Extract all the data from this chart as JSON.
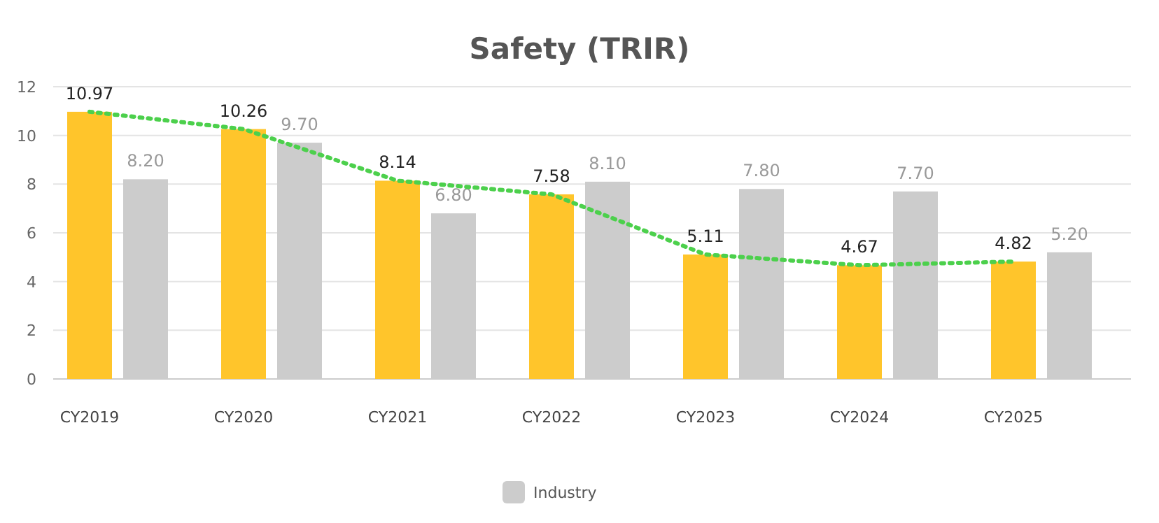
{
  "chart_data": {
    "type": "bar",
    "title": "Safety (TRIR)",
    "categories": [
      "CY2019",
      "CY2020",
      "CY2021",
      "CY2022",
      "CY2023",
      "CY2024",
      "CY2025"
    ],
    "series": [
      {
        "color": "#ffc52b",
        "values": [
          10.97,
          10.26,
          8.14,
          7.58,
          5.11,
          4.67,
          4.82
        ],
        "value_labels": [
          "10.97",
          "10.26",
          "8.14",
          "7.58",
          "5.11",
          "4.67",
          "4.82"
        ]
      },
      {
        "name": "Industry",
        "color": "#cccccc",
        "values": [
          8.2,
          9.7,
          6.8,
          8.1,
          7.8,
          7.7,
          5.2
        ],
        "value_labels": [
          "8.20",
          "9.70",
          "6.80",
          "8.10",
          "7.80",
          "7.70",
          "5.20"
        ]
      },
      {
        "type": "line",
        "color": "#4cd04c",
        "line_style": "dotted",
        "values": [
          10.97,
          10.26,
          8.14,
          7.58,
          5.11,
          4.67,
          4.82
        ]
      }
    ],
    "ylim": [
      0,
      12
    ],
    "yticks": [
      0,
      2,
      4,
      6,
      8,
      10,
      12
    ],
    "grid": "y",
    "legend": "bottom"
  }
}
